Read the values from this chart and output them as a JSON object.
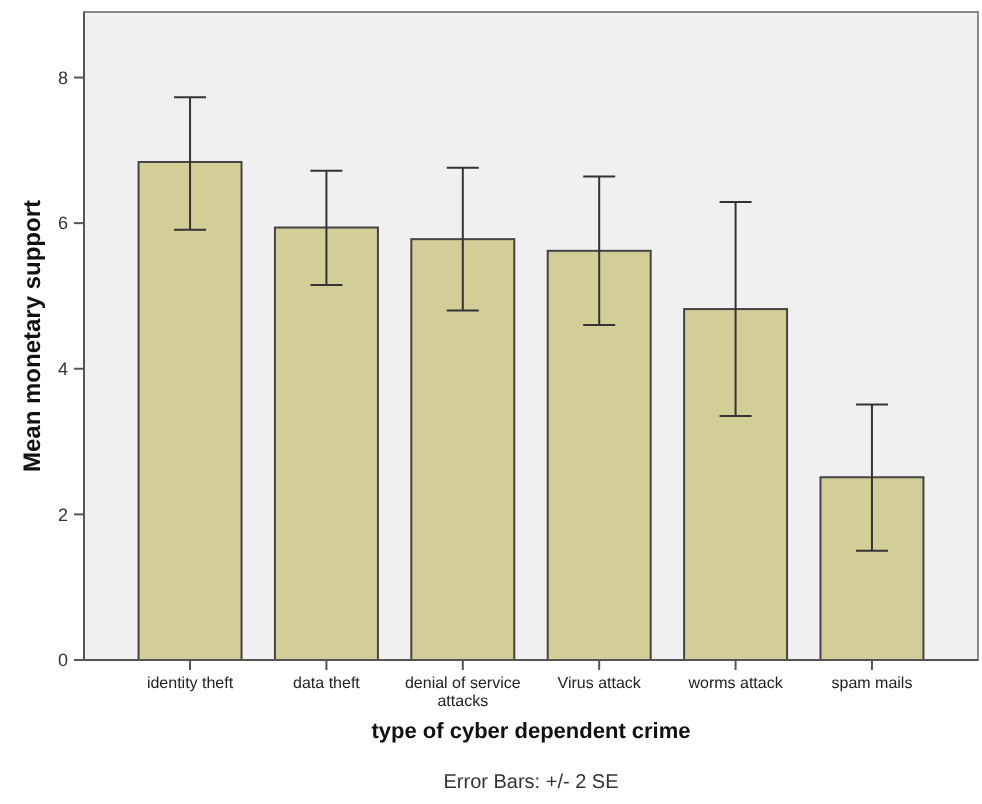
{
  "chart_data": {
    "type": "bar",
    "xlabel": "type of cyber dependent crime",
    "ylabel": "Mean monetary support",
    "annotations": [
      "Error Bars: +/- 2 SE"
    ],
    "categories": [
      "identity theft",
      "data theft",
      "denial of service attacks",
      "Virus attack",
      "worms attack",
      "spam mails"
    ],
    "values": [
      6.84,
      5.94,
      5.78,
      5.62,
      4.82,
      2.51
    ],
    "errors": [
      [
        5.91,
        7.73
      ],
      [
        5.15,
        6.72
      ],
      [
        4.8,
        6.76
      ],
      [
        4.6,
        6.64
      ],
      [
        3.35,
        6.29
      ],
      [
        1.5,
        3.51
      ]
    ],
    "color": "#d3ce97",
    "ylim": [
      0,
      8.9
    ],
    "yticks": [
      0,
      2,
      4,
      6,
      8
    ],
    "grid": false
  }
}
